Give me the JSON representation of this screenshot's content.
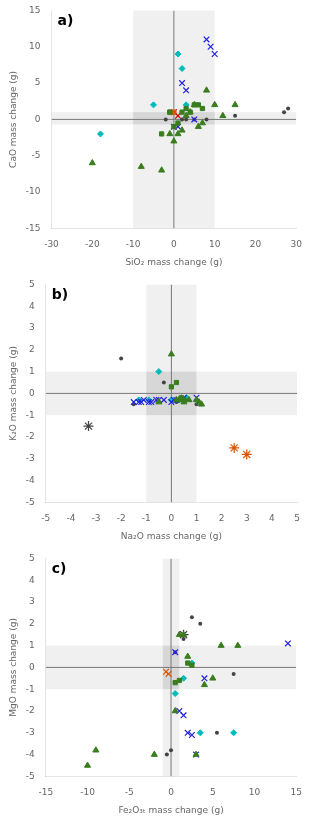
{
  "chart_data": [
    {
      "type": "scatter",
      "xlabel": "SiO₂ mass change (g)",
      "ylabel": "CaO mass change (g)",
      "annotation": "a)",
      "xlim": [
        -30,
        30
      ],
      "ylim": [
        -15,
        15
      ],
      "xticks": [
        -30,
        -20,
        -10,
        0,
        10,
        20,
        30
      ],
      "yticks": [
        -15,
        -10,
        -5,
        0,
        5,
        10,
        15
      ],
      "vband": [
        -10,
        10
      ],
      "hband": [
        -0.7,
        1.0
      ],
      "vline": 0,
      "hline": 0,
      "grid": false,
      "series": [
        {
          "color": "#3a7d1e",
          "marker": "triangle",
          "x": [
            -20,
            -8,
            -3,
            -1,
            0,
            1,
            2,
            3,
            4,
            5,
            6,
            7,
            8,
            10,
            12,
            15
          ],
          "values": [
            -6,
            -6.5,
            -7,
            -2,
            -3,
            -2,
            -1.5,
            0.5,
            1,
            2,
            -1,
            -0.5,
            4,
            2,
            0.5,
            2
          ]
        },
        {
          "color": "#3a7d1e",
          "marker": "square",
          "x": [
            -3,
            -1,
            0,
            1,
            2,
            3,
            4,
            5,
            6,
            7
          ],
          "values": [
            -2,
            1,
            -1,
            -0.5,
            1,
            1.5,
            1,
            2,
            2,
            1.5
          ]
        },
        {
          "color": "#2222dd",
          "marker": "x",
          "x": [
            0,
            1,
            2,
            3,
            5,
            8,
            9,
            10
          ],
          "values": [
            -1,
            -1,
            5,
            4,
            0,
            11,
            10,
            9
          ]
        },
        {
          "color": "#00bbbb",
          "marker": "diamond",
          "x": [
            -18,
            -5,
            1,
            2,
            3
          ],
          "values": [
            -2,
            2,
            9,
            7,
            2
          ]
        },
        {
          "color": "#444444",
          "marker": "point",
          "x": [
            -2,
            0,
            1,
            2,
            3,
            5,
            8,
            10,
            15,
            27,
            28
          ],
          "values": [
            0,
            -1,
            -0.5,
            0,
            0,
            0,
            0,
            2,
            0.5,
            1,
            1.5
          ]
        },
        {
          "color": "#dd5500",
          "marker": "square",
          "x": [
            -1,
            0
          ],
          "values": [
            1,
            1
          ]
        },
        {
          "color": "#cc0000",
          "marker": "x",
          "x": [
            0,
            1
          ],
          "values": [
            1,
            0.5
          ]
        }
      ]
    },
    {
      "type": "scatter",
      "xlabel": "Na₂O mass change (g)",
      "ylabel": "K₂O mass change (g)",
      "annotation": "b)",
      "xlim": [
        -5,
        5
      ],
      "ylim": [
        -5,
        5
      ],
      "xticks": [
        -5,
        -4,
        -3,
        -2,
        -1,
        0,
        1,
        2,
        3,
        4,
        5
      ],
      "yticks": [
        -5,
        -4,
        -3,
        -2,
        -1,
        0,
        1,
        2,
        3,
        4,
        5
      ],
      "vband": [
        -1,
        1
      ],
      "hband": [
        -1,
        1
      ],
      "vline": 0,
      "hline": 0,
      "grid": false,
      "series": [
        {
          "color": "#3a7d1e",
          "marker": "triangle",
          "x": [
            -0.5,
            0.0,
            0.2,
            0.3,
            0.5,
            0.7,
            1.0,
            1.1,
            1.2
          ],
          "values": [
            -0.4,
            1.8,
            -0.3,
            -0.3,
            -0.4,
            -0.3,
            -0.3,
            -0.4,
            -0.5
          ]
        },
        {
          "color": "#3a7d1e",
          "marker": "square",
          "x": [
            0.0,
            0.2,
            0.4,
            0.5
          ],
          "values": [
            0.3,
            0.5,
            -0.2,
            -0.3
          ]
        },
        {
          "color": "#2222dd",
          "marker": "x",
          "x": [
            -1.5,
            -1.3,
            -1.2,
            -1.1,
            -0.9,
            -0.8,
            -0.6,
            -0.5,
            -0.3,
            0.0,
            0.1,
            0.2,
            0.5,
            1.0
          ],
          "values": [
            -0.4,
            -0.4,
            -0.4,
            -0.3,
            -0.4,
            -0.4,
            -0.3,
            -0.3,
            -0.3,
            -0.4,
            -0.3,
            -0.3,
            -0.2,
            -0.2
          ]
        },
        {
          "color": "#00bbbb",
          "marker": "diamond",
          "x": [
            -1.3,
            -0.9,
            -0.5,
            0.0,
            0.3,
            0.5,
            0.6
          ],
          "values": [
            -0.3,
            -0.3,
            1.0,
            -0.3,
            -0.3,
            -0.3,
            -0.2
          ]
        },
        {
          "color": "#444444",
          "marker": "point",
          "x": [
            -2.0,
            -1.5,
            -0.3,
            0.0,
            0.2,
            0.5,
            1.0,
            1.2
          ],
          "values": [
            1.6,
            -0.5,
            0.5,
            -0.3,
            -0.4,
            -0.4,
            -0.5,
            -0.5
          ]
        },
        {
          "color": "#dd5500",
          "marker": "star",
          "x": [
            2.5,
            3.0
          ],
          "values": [
            -2.5,
            -2.8
          ]
        },
        {
          "color": "#444444",
          "marker": "star",
          "x": [
            -3.3
          ],
          "values": [
            -1.5
          ]
        }
      ]
    },
    {
      "type": "scatter",
      "xlabel": "Fe₂O₃ₜ mass change (g)",
      "ylabel": "MgO mass change (g)",
      "annotation": "c)",
      "xlim": [
        -15,
        15
      ],
      "ylim": [
        -5,
        5
      ],
      "xticks": [
        -15,
        -10,
        -5,
        0,
        5,
        10,
        15
      ],
      "yticks": [
        -5,
        -4,
        -3,
        -2,
        -1,
        0,
        1,
        2,
        3,
        4,
        5
      ],
      "vband": [
        -1,
        1
      ],
      "hband": [
        -1,
        1
      ],
      "vline": 0,
      "hline": 0,
      "grid": false,
      "series": [
        {
          "color": "#3a7d1e",
          "marker": "triangle",
          "x": [
            -10,
            -9,
            -2,
            0.5,
            1,
            1.5,
            2,
            3,
            4,
            5,
            6,
            8
          ],
          "values": [
            -4.5,
            -3.8,
            -4,
            -2,
            1.5,
            1.5,
            0.5,
            -4,
            -0.8,
            -0.5,
            1,
            1
          ]
        },
        {
          "color": "#3a7d1e",
          "marker": "square",
          "x": [
            0.5,
            1,
            2,
            2.5
          ],
          "values": [
            -0.7,
            -0.6,
            0.2,
            0.1
          ]
        },
        {
          "color": "#2222dd",
          "marker": "x",
          "x": [
            0.5,
            1,
            1.5,
            2,
            2.5,
            3,
            4,
            14
          ],
          "values": [
            0.7,
            -2.0,
            -2.2,
            -3.0,
            -3.1,
            -4.0,
            -0.5,
            1.1
          ]
        },
        {
          "color": "#00bbbb",
          "marker": "diamond",
          "x": [
            0.5,
            1.5,
            2.5,
            3.5,
            7.5
          ],
          "values": [
            -1.2,
            -0.5,
            0.2,
            -3.0,
            -3.0
          ]
        },
        {
          "color": "#444444",
          "marker": "point",
          "x": [
            -0.5,
            0.0,
            0.5,
            1.5,
            2.5,
            3.5,
            5.5,
            7.5
          ],
          "values": [
            -4.0,
            -3.8,
            0.7,
            1.3,
            2.3,
            2.0,
            -3.0,
            -0.3
          ]
        },
        {
          "color": "#444444",
          "marker": "star",
          "x": [
            1.5
          ],
          "values": [
            1.5
          ]
        },
        {
          "color": "#dd5500",
          "marker": "x",
          "x": [
            -0.6,
            -0.3
          ],
          "values": [
            -0.2,
            -0.3
          ]
        }
      ]
    }
  ]
}
